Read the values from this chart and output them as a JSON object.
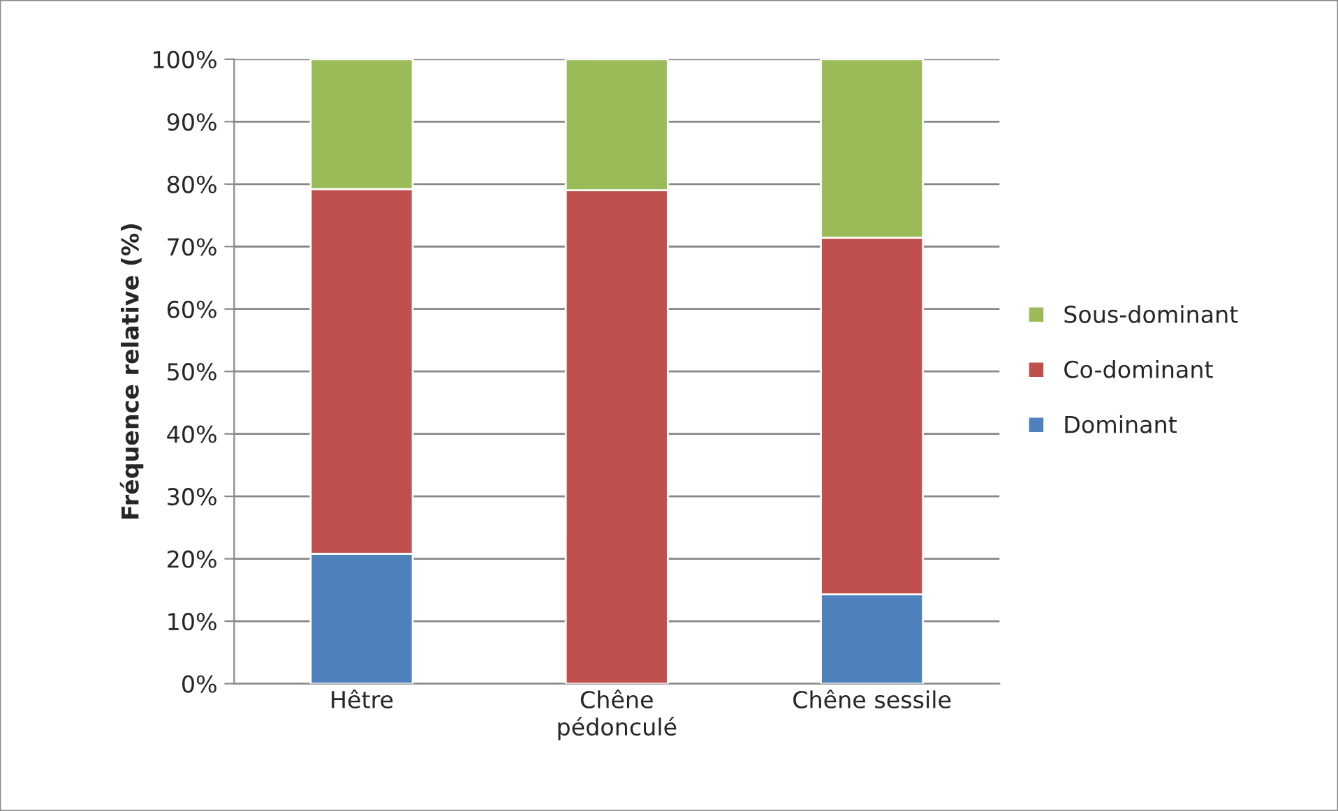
{
  "chart_data": {
    "type": "bar",
    "stacked": true,
    "ylabel": "Fréquence relative (%)",
    "categories": [
      "Hêtre",
      "Chêne\npédonculé",
      "Chêne sessile"
    ],
    "series": [
      {
        "name": "Dominant",
        "color": "#4f81bd",
        "values": [
          20.8,
          0,
          14.3
        ]
      },
      {
        "name": "Co-dominant",
        "color": "#c0504d",
        "values": [
          58.4,
          79.0,
          57.1
        ]
      },
      {
        "name": "Sous-dominant",
        "color": "#9bbb59",
        "values": [
          20.8,
          21.0,
          28.6
        ]
      }
    ],
    "ylim": [
      0,
      100
    ],
    "yticks": [
      {
        "value": 0,
        "label": "0%"
      },
      {
        "value": 10,
        "label": "10%"
      },
      {
        "value": 20,
        "label": "20%"
      },
      {
        "value": 30,
        "label": "30%"
      },
      {
        "value": 40,
        "label": "40%"
      },
      {
        "value": 50,
        "label": "50%"
      },
      {
        "value": 60,
        "label": "60%"
      },
      {
        "value": 70,
        "label": "70%"
      },
      {
        "value": 80,
        "label": "80%"
      },
      {
        "value": 90,
        "label": "90%"
      },
      {
        "value": 100,
        "label": "100%"
      }
    ],
    "grid": "y",
    "legend": "right"
  }
}
